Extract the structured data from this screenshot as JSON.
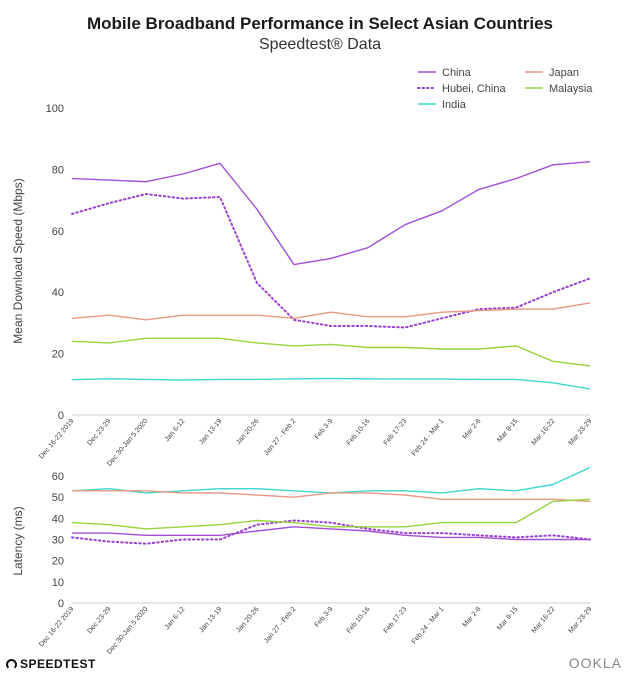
{
  "title": "Mobile Broadband Performance in Select Asian Countries",
  "subtitle": "Speedtest® Data",
  "footer": {
    "brand_left": "SPEEDTEST",
    "brand_right": "OOKLA"
  },
  "chart_data": [
    {
      "type": "line",
      "ylabel": "Mean Download Speed (Mbps)",
      "ylim": [
        0,
        100
      ],
      "yticks": [
        0,
        20,
        40,
        60,
        80,
        100
      ],
      "legend_position": "top-right",
      "x": [
        "Dec 16-22 2019",
        "Dec 23-29",
        "Dec 30-Jan 5 2020",
        "Jan 6-12",
        "Jan 13-19",
        "Jan 20-26",
        "Jan 27 - Feb 2",
        "Feb 3-9",
        "Feb 10-16",
        "Feb 17-23",
        "Feb 24 - Mar 1",
        "Mar 2-8",
        "Mar 9-15",
        "Mar 16-22",
        "Mar 23-29"
      ],
      "series": [
        {
          "name": "China",
          "color": "#a24fd6",
          "dash": "solid",
          "values": [
            77,
            76.5,
            76,
            78.5,
            82,
            67,
            49,
            51,
            54.5,
            62,
            66.5,
            73.5,
            77,
            81.5,
            82.5
          ]
        },
        {
          "name": "Hubei, China",
          "color": "#9b3fd1",
          "dash": "dotted",
          "values": [
            65.5,
            69,
            72,
            70.5,
            71,
            43,
            31,
            29,
            29,
            28.5,
            31.5,
            34.5,
            35,
            40,
            44.5
          ]
        },
        {
          "name": "India",
          "color": "#3dd9cc",
          "dash": "solid",
          "values": [
            11.5,
            11.8,
            11.6,
            11.4,
            11.6,
            11.6,
            11.8,
            11.9,
            11.8,
            11.7,
            11.7,
            11.6,
            11.6,
            10.5,
            8.5
          ]
        },
        {
          "name": "Japan",
          "color": "#e89880",
          "dash": "solid",
          "values": [
            31.5,
            32.5,
            31,
            32.5,
            32.5,
            32.5,
            31.5,
            33.5,
            32,
            32,
            33.5,
            34,
            34.5,
            34.5,
            36.5
          ]
        },
        {
          "name": "Malaysia",
          "color": "#96d43c",
          "dash": "solid",
          "values": [
            24,
            23.5,
            25,
            25,
            25,
            23.5,
            22.5,
            23,
            22,
            22,
            21.5,
            21.5,
            22.5,
            17.5,
            16
          ]
        }
      ]
    },
    {
      "type": "line",
      "ylabel": "Latency (ms)",
      "ylim": [
        0,
        60
      ],
      "yticks": [
        0,
        10,
        20,
        30,
        40,
        50,
        60
      ],
      "x": [
        "Dec 16-22 2019",
        "Dec 23-29",
        "Dec 30-Jan 5 2020",
        "Jan 6-12",
        "Jan 13-19",
        "Jan 20-26",
        "Jan 27 - Feb 2",
        "Feb 3-9",
        "Feb 10-16",
        "Feb 17-23",
        "Feb 24 - Mar 1",
        "Mar 2-8",
        "Mar 9-15",
        "Mar 16-22",
        "Mar 23-29"
      ],
      "series": [
        {
          "name": "China",
          "color": "#a24fd6",
          "dash": "solid",
          "values": [
            33,
            33,
            32,
            32,
            32,
            34,
            36,
            35,
            34,
            32,
            31,
            31,
            30,
            30,
            30
          ]
        },
        {
          "name": "Hubei, China",
          "color": "#9b3fd1",
          "dash": "dotted",
          "values": [
            31,
            29,
            28,
            30,
            30,
            37,
            39,
            38,
            35,
            33,
            33,
            32,
            31,
            32,
            30
          ]
        },
        {
          "name": "India",
          "color": "#3dd9cc",
          "dash": "solid",
          "values": [
            53,
            54,
            52,
            53,
            54,
            54,
            53,
            52,
            53,
            53,
            52,
            54,
            53,
            56,
            64
          ]
        },
        {
          "name": "Japan",
          "color": "#e89880",
          "dash": "solid",
          "values": [
            53,
            53,
            53,
            52,
            52,
            51,
            50,
            52,
            52,
            51,
            49,
            49,
            49,
            49,
            48
          ]
        },
        {
          "name": "Malaysia",
          "color": "#96d43c",
          "dash": "solid",
          "values": [
            38,
            37,
            35,
            36,
            37,
            39,
            38,
            36,
            36,
            36,
            38,
            38,
            38,
            48,
            49
          ]
        }
      ]
    }
  ]
}
